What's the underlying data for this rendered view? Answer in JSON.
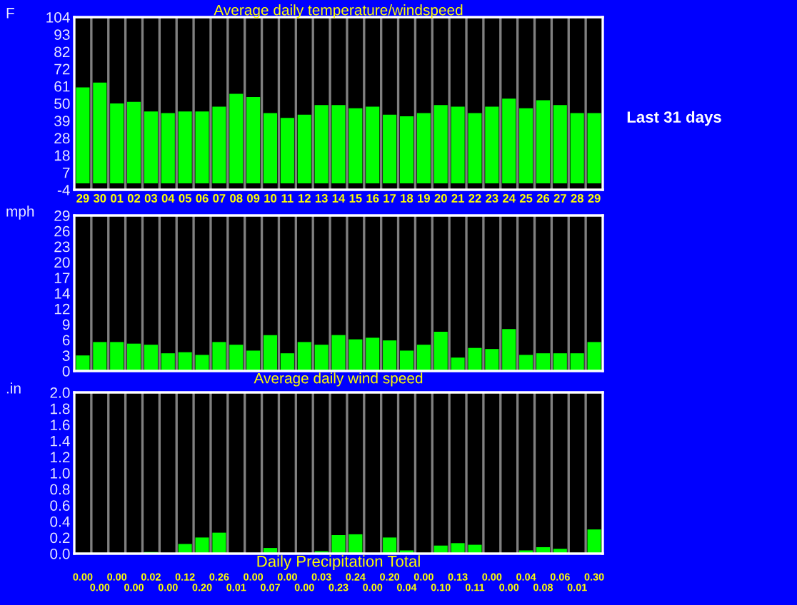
{
  "chart_data": [
    {
      "type": "bar",
      "title": "Average daily temperature/windspeed",
      "ylabel": "F",
      "annotations": [
        "Last 31 days"
      ],
      "categories": [
        "29",
        "30",
        "01",
        "02",
        "03",
        "04",
        "05",
        "06",
        "07",
        "08",
        "09",
        "10",
        "11",
        "12",
        "13",
        "14",
        "15",
        "16",
        "17",
        "18",
        "19",
        "20",
        "21",
        "22",
        "23",
        "24",
        "25",
        "26",
        "27",
        "28",
        "29"
      ],
      "values": [
        60,
        63,
        50,
        51,
        45,
        44,
        45,
        45,
        48,
        56,
        54,
        44,
        41,
        43,
        49,
        49,
        47,
        48,
        43,
        42,
        44,
        49,
        48,
        44,
        48,
        53,
        47,
        52,
        49,
        44,
        44
      ],
      "color": "#00ff00",
      "ylim": [
        -4,
        104
      ],
      "yticks": [
        -4,
        {
          "value": 6.8,
          "label": "7"
        },
        {
          "value": 17.6,
          "label": "18"
        },
        {
          "value": 28.4,
          "label": "28"
        },
        {
          "value": 39.2,
          "label": "39"
        },
        50,
        {
          "value": 60.8,
          "label": "61"
        },
        {
          "value": 71.6,
          "label": "72"
        },
        {
          "value": 82.4,
          "label": "82"
        },
        {
          "value": 93.2,
          "label": "93"
        },
        104
      ],
      "grid": "x"
    },
    {
      "type": "bar",
      "title": "Average daily wind speed",
      "ylabel": "mph",
      "categories": [
        null,
        null,
        null,
        null,
        null,
        null,
        null,
        null,
        null,
        null,
        null,
        null,
        null,
        null,
        null,
        null,
        null,
        null,
        null,
        null,
        null,
        null,
        null,
        null,
        null,
        null,
        null,
        null,
        null,
        null,
        null
      ],
      "values": [
        2.9,
        5.4,
        5.4,
        5.1,
        4.9,
        3.3,
        3.5,
        3.0,
        5.4,
        4.9,
        3.8,
        6.7,
        3.3,
        5.4,
        4.9,
        6.7,
        5.9,
        6.2,
        5.7,
        3.8,
        4.9,
        7.3,
        2.5,
        4.3,
        4.1,
        7.8,
        3.0,
        3.3,
        3.3,
        3.3,
        5.4
      ],
      "color": "#00ff00",
      "ylim": [
        0,
        29
      ],
      "yticks": [
        0,
        {
          "value": 2.9,
          "label": "3"
        },
        {
          "value": 5.8,
          "label": "6"
        },
        {
          "value": 8.7,
          "label": "9"
        },
        {
          "value": 11.6,
          "label": "12"
        },
        {
          "value": 14.5,
          "label": "14"
        },
        {
          "value": 17.4,
          "label": "17"
        },
        {
          "value": 20.3,
          "label": "20"
        },
        {
          "value": 23.2,
          "label": "23"
        },
        {
          "value": 26.1,
          "label": "26"
        },
        29
      ],
      "grid": "x",
      "tick_labels": "y"
    },
    {
      "type": "bar",
      "title": "Daily Precipitation Total",
      "ylabel": ".in",
      "categories": [
        null,
        null,
        null,
        null,
        null,
        null,
        null,
        null,
        null,
        null,
        null,
        null,
        null,
        null,
        null,
        null,
        null,
        null,
        null,
        null,
        null,
        null,
        null,
        null,
        null,
        null,
        null,
        null,
        null,
        null,
        null
      ],
      "values": [
        0.0,
        0.0,
        0.0,
        0.0,
        0.02,
        0.0,
        0.12,
        0.2,
        0.26,
        0.01,
        0.0,
        0.07,
        0.0,
        0.0,
        0.03,
        0.23,
        0.24,
        0.0,
        0.2,
        0.04,
        0.0,
        0.1,
        0.13,
        0.11,
        0.0,
        0.0,
        0.04,
        0.08,
        0.06,
        0.01,
        0.3
      ],
      "value_labels": [
        "0.00",
        "0.00",
        "0.00",
        "0.00",
        "0.02",
        "0.00",
        "0.12",
        "0.20",
        "0.26",
        "0.01",
        "0.00",
        "0.07",
        "0.00",
        "0.00",
        "0.03",
        "0.23",
        "0.24",
        "0.00",
        "0.20",
        "0.04",
        "0.00",
        "0.10",
        "0.13",
        "0.11",
        "0.00",
        "0.00",
        "0.04",
        "0.08",
        "0.06",
        "0.01",
        "0.30"
      ],
      "color": "#00ff00",
      "ylim": [
        0,
        2.0
      ],
      "yticks": [
        {
          "value": 0,
          "label": "0.0"
        },
        0.2,
        0.4,
        0.6,
        0.8,
        {
          "value": 1,
          "label": "1.0"
        },
        1.2,
        1.4,
        1.6,
        1.8,
        {
          "value": 2,
          "label": "2.0"
        }
      ],
      "grid": "x",
      "tick_labels": "y"
    }
  ]
}
